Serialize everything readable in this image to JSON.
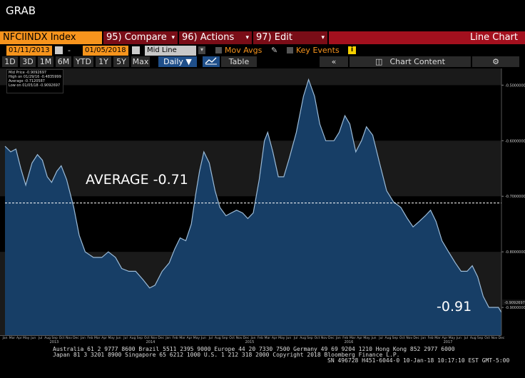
{
  "app_title": "GRAB",
  "toolbar": {
    "ticker": "NFCIINDX Index",
    "compare": "95) Compare",
    "actions": "96) Actions",
    "edit": "97) Edit",
    "chart_type": "Line Chart"
  },
  "range_bar": {
    "start_date": "01/11/2013",
    "end_date": "01/05/2018",
    "dash": "-",
    "price_type": "Mid Line",
    "mov_avgs": "Mov Avgs",
    "key_events": "Key Events"
  },
  "periods": [
    "1D",
    "3D",
    "1M",
    "6M",
    "YTD",
    "1Y",
    "5Y",
    "Max"
  ],
  "frequency": "Daily",
  "table_label": "Table",
  "back_label": "«",
  "chart_content_label": "Chart Content",
  "legend": [
    "Mid Price  -0.9092697",
    "High on 01/29/16  -0.4835999",
    "Average  -0.7120587",
    "Low on 01/05/18  -0.9092697"
  ],
  "colors": {
    "accent": "#f7941d",
    "dark_red": "#7a0d17",
    "area": "#173e66",
    "line": "#9bbbd8"
  },
  "footer": {
    "line1": "Australia 61 2 9777 8600 Brazil 5511 2395 9000 Europe 44 20 7330 7500 Germany 49 69 9204 1210 Hong Kong 852 2977 6000",
    "line2": "Japan 81 3 3201 8900        Singapore 65 6212 1000        U.S. 1 212 318 2000        Copyright 2018 Bloomberg Finance L.P.",
    "line3": "SN 496728 H451-6044-0 10-Jan-18 10:17:10 EST  GMT-5:00"
  },
  "chart_data": {
    "type": "area",
    "title": "",
    "xlabel": "",
    "ylabel": "",
    "ylim": [
      -0.95,
      -0.47
    ],
    "y_ticks": [
      -0.5,
      -0.6,
      -0.7,
      -0.8,
      -0.9
    ],
    "y_tick_labels": [
      "-0.5000000",
      "-0.6000000",
      "-0.7000000",
      "-0.8000000",
      "-0.9000000"
    ],
    "last_value_label": "-0.9092697",
    "month_labels": [
      "Jan",
      "Mar",
      "Apr",
      "May",
      "Jun",
      "Jul",
      "Aug",
      "Sep",
      "Oct",
      "Nov",
      "Dec",
      "Jan",
      "Feb",
      "Mar",
      "Apr",
      "May",
      "Jun",
      "Jul",
      "Aug",
      "Sep",
      "Oct",
      "Nov",
      "Dec",
      "Jan",
      "Feb",
      "Mar",
      "Apr",
      "May",
      "Jun",
      "Jul",
      "Aug",
      "Sep",
      "Oct",
      "Nov",
      "Dec",
      "Jan",
      "Feb",
      "Mar",
      "Apr",
      "May",
      "Jun",
      "Jul",
      "Aug",
      "Sep",
      "Oct",
      "Nov",
      "Dec",
      "Jan",
      "Feb",
      "Mar",
      "Apr",
      "May",
      "Jun",
      "Jul",
      "Aug",
      "Sep",
      "Oct",
      "Nov",
      "Dec",
      "Jan",
      "Feb",
      "Mar",
      "Apr",
      "May",
      "Jun",
      "Jul",
      "Aug",
      "Sep",
      "Oct",
      "Nov",
      "Dec"
    ],
    "year_labels": [
      "2013",
      "2014",
      "2015",
      "2016",
      "2017"
    ],
    "average": -0.7120587,
    "average_label": "AVERAGE -0.71",
    "last_label": "-0.91",
    "grid": true,
    "x_start": "2013-01-11",
    "x_end": "2018-01-05",
    "series": [
      {
        "points": [
          [
            "2013-01-11",
            -0.61
          ],
          [
            "2013-02-01",
            -0.62
          ],
          [
            "2013-02-20",
            -0.615
          ],
          [
            "2013-03-10",
            -0.65
          ],
          [
            "2013-03-28",
            -0.68
          ],
          [
            "2013-04-20",
            -0.64
          ],
          [
            "2013-05-10",
            -0.625
          ],
          [
            "2013-05-28",
            -0.635
          ],
          [
            "2013-06-15",
            -0.665
          ],
          [
            "2013-07-01",
            -0.675
          ],
          [
            "2013-07-20",
            -0.655
          ],
          [
            "2013-08-05",
            -0.645
          ],
          [
            "2013-08-25",
            -0.67
          ],
          [
            "2013-09-20",
            -0.72
          ],
          [
            "2013-10-10",
            -0.77
          ],
          [
            "2013-11-01",
            -0.8
          ],
          [
            "2013-12-01",
            -0.81
          ],
          [
            "2014-01-01",
            -0.81
          ],
          [
            "2014-01-25",
            -0.8
          ],
          [
            "2014-02-20",
            -0.81
          ],
          [
            "2014-03-15",
            -0.83
          ],
          [
            "2014-04-10",
            -0.835
          ],
          [
            "2014-05-05",
            -0.835
          ],
          [
            "2014-06-01",
            -0.85
          ],
          [
            "2014-06-25",
            -0.865
          ],
          [
            "2014-07-15",
            -0.86
          ],
          [
            "2014-08-10",
            -0.835
          ],
          [
            "2014-09-05",
            -0.82
          ],
          [
            "2014-09-25",
            -0.795
          ],
          [
            "2014-10-15",
            -0.775
          ],
          [
            "2014-11-05",
            -0.78
          ],
          [
            "2014-11-25",
            -0.75
          ],
          [
            "2014-12-10",
            -0.7
          ],
          [
            "2014-12-25",
            -0.655
          ],
          [
            "2015-01-10",
            -0.62
          ],
          [
            "2015-01-30",
            -0.64
          ],
          [
            "2015-02-20",
            -0.69
          ],
          [
            "2015-03-10",
            -0.72
          ],
          [
            "2015-04-01",
            -0.735
          ],
          [
            "2015-04-20",
            -0.73
          ],
          [
            "2015-05-10",
            -0.725
          ],
          [
            "2015-06-01",
            -0.73
          ],
          [
            "2015-06-20",
            -0.74
          ],
          [
            "2015-07-10",
            -0.73
          ],
          [
            "2015-08-01",
            -0.67
          ],
          [
            "2015-08-20",
            -0.6
          ],
          [
            "2015-09-01",
            -0.585
          ],
          [
            "2015-09-20",
            -0.62
          ],
          [
            "2015-10-10",
            -0.665
          ],
          [
            "2015-10-30",
            -0.665
          ],
          [
            "2015-11-20",
            -0.63
          ],
          [
            "2015-12-15",
            -0.585
          ],
          [
            "2016-01-10",
            -0.52
          ],
          [
            "2016-01-29",
            -0.49
          ],
          [
            "2016-02-20",
            -0.52
          ],
          [
            "2016-03-10",
            -0.57
          ],
          [
            "2016-04-01",
            -0.6
          ],
          [
            "2016-05-01",
            -0.6
          ],
          [
            "2016-05-20",
            -0.585
          ],
          [
            "2016-06-10",
            -0.555
          ],
          [
            "2016-06-28",
            -0.57
          ],
          [
            "2016-07-20",
            -0.62
          ],
          [
            "2016-08-10",
            -0.6
          ],
          [
            "2016-08-28",
            -0.575
          ],
          [
            "2016-09-20",
            -0.59
          ],
          [
            "2016-10-15",
            -0.64
          ],
          [
            "2016-11-10",
            -0.69
          ],
          [
            "2016-12-05",
            -0.71
          ],
          [
            "2017-01-01",
            -0.72
          ],
          [
            "2017-01-25",
            -0.74
          ],
          [
            "2017-02-15",
            -0.755
          ],
          [
            "2017-03-10",
            -0.745
          ],
          [
            "2017-04-01",
            -0.735
          ],
          [
            "2017-04-20",
            -0.725
          ],
          [
            "2017-05-10",
            -0.745
          ],
          [
            "2017-06-01",
            -0.78
          ],
          [
            "2017-06-25",
            -0.8
          ],
          [
            "2017-07-20",
            -0.82
          ],
          [
            "2017-08-10",
            -0.835
          ],
          [
            "2017-09-01",
            -0.835
          ],
          [
            "2017-09-20",
            -0.825
          ],
          [
            "2017-10-10",
            -0.845
          ],
          [
            "2017-10-30",
            -0.88
          ],
          [
            "2017-11-20",
            -0.9
          ],
          [
            "2017-12-10",
            -0.9
          ],
          [
            "2017-12-25",
            -0.9
          ],
          [
            "2018-01-05",
            -0.909
          ]
        ]
      }
    ]
  }
}
